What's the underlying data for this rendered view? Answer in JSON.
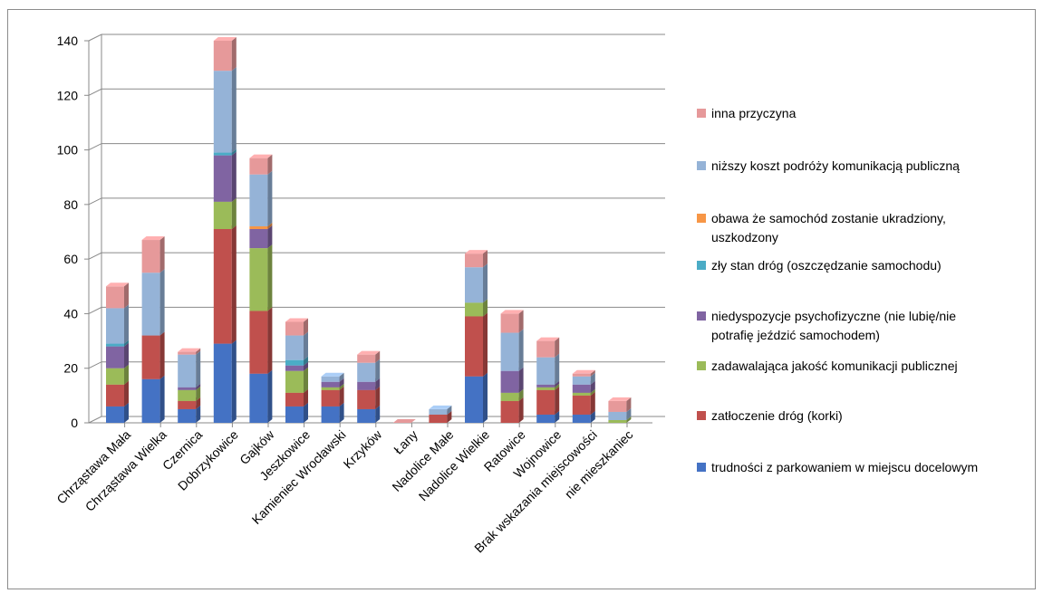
{
  "chart_data": {
    "type": "bar",
    "stacked": true,
    "style": "3d-column",
    "grid": true,
    "legend_position": "right",
    "ylim": [
      0,
      140
    ],
    "yticks": [
      0,
      20,
      40,
      60,
      80,
      100,
      120,
      140
    ],
    "categories": [
      "Chrząstawa Mała",
      "Chrząstawa Wielka",
      "Czernica",
      "Dobrzykowice",
      "Gajków",
      "Jeszkowice",
      "Kamieniec Wrocławski",
      "Krzyków",
      "Łany",
      "Nadolice Małe",
      "Nadolice Wielkie",
      "Ratowice",
      "Wojnowice",
      "Brak wskazania miejscowości",
      "nie mieszkaniec"
    ],
    "series": [
      {
        "name": "trudności z parkowaniem w miejscu docelowym",
        "color": "#4472C4",
        "values": [
          6,
          16,
          5,
          29,
          18,
          6,
          6,
          5,
          0,
          0,
          17,
          0,
          3,
          3,
          0
        ]
      },
      {
        "name": "zatłoczenie dróg (korki)",
        "color": "#C0504D",
        "values": [
          8,
          16,
          3,
          42,
          23,
          5,
          6,
          7,
          0,
          3,
          22,
          8,
          9,
          7,
          0
        ]
      },
      {
        "name": "zadawalająca jakość komunikacji publicznej",
        "color": "#9BBB59",
        "values": [
          6,
          0,
          4,
          10,
          23,
          8,
          1,
          0,
          0,
          0,
          5,
          3,
          1,
          1,
          1
        ]
      },
      {
        "name": "niedyspozycje psychofizyczne (nie lubię/nie potrafię jeździć samochodem)",
        "color": "#8064A2",
        "values": [
          8,
          0,
          1,
          17,
          7,
          2,
          2,
          3,
          0,
          0,
          0,
          8,
          1,
          3,
          0
        ]
      },
      {
        "name": "zły stan dróg (oszczędzanie samochodu)",
        "color": "#4BACC6",
        "values": [
          1,
          0,
          0,
          1,
          0,
          2,
          0,
          0,
          0,
          0,
          0,
          0,
          0,
          0,
          0
        ]
      },
      {
        "name": "obawa że samochód zostanie ukradziony, uszkodzony",
        "color": "#F79646",
        "values": [
          0,
          0,
          0,
          0,
          1,
          0,
          0,
          0,
          0,
          0,
          0,
          0,
          0,
          0,
          0
        ]
      },
      {
        "name": "niższy koszt podróży komunikacją publiczną",
        "color": "#95B3D7",
        "values": [
          13,
          23,
          12,
          30,
          19,
          9,
          2,
          7,
          0,
          2,
          13,
          14,
          10,
          3,
          3
        ]
      },
      {
        "name": "inna przyczyna",
        "color": "#E6999A",
        "values": [
          8,
          12,
          1,
          11,
          6,
          5,
          0,
          3,
          0,
          0,
          5,
          7,
          6,
          1,
          4
        ]
      }
    ]
  }
}
